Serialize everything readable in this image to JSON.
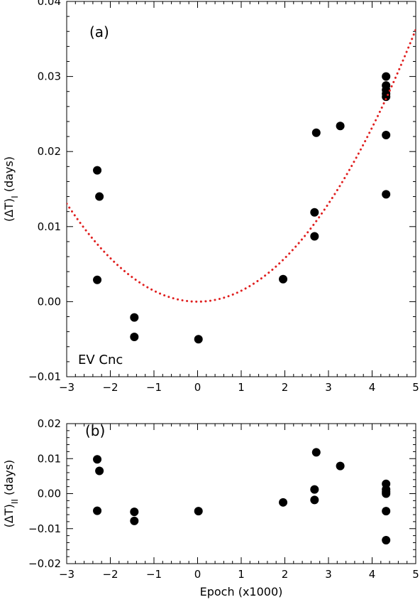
{
  "chart_data": [
    {
      "type": "scatter",
      "panel_label": "(a)",
      "annotation": "EV Cnc",
      "xlabel": "",
      "ylabel": "(ΔT)",
      "ylabel_subscript": "I",
      "ylabel_unit": " (days)",
      "xlim": [
        -3,
        5
      ],
      "ylim": [
        -0.01,
        0.04
      ],
      "xticks": [
        -3,
        -2,
        -1,
        0,
        1,
        2,
        3,
        4,
        5
      ],
      "xtick_labels": [
        "−3",
        "−2",
        "−1",
        "0",
        "1",
        "2",
        "3",
        "4",
        "5"
      ],
      "yticks": [
        -0.01,
        0.0,
        0.01,
        0.02,
        0.03,
        0.04
      ],
      "ytick_labels": [
        "−0.01",
        "0.00",
        "0.01",
        "0.02",
        "0.03",
        "0.04"
      ],
      "grid": false,
      "series": [
        {
          "style": "points",
          "color": "#000000",
          "points": [
            [
              -2.3,
              0.0175
            ],
            [
              -2.25,
              0.014
            ],
            [
              -2.3,
              0.0029
            ],
            [
              -1.45,
              -0.0021
            ],
            [
              -1.45,
              -0.0047
            ],
            [
              0.02,
              -0.005
            ],
            [
              1.96,
              0.003
            ],
            [
              2.68,
              0.0119
            ],
            [
              2.68,
              0.0087
            ],
            [
              2.72,
              0.0225
            ],
            [
              3.27,
              0.0234
            ],
            [
              4.32,
              0.03
            ],
            [
              4.32,
              0.0288
            ],
            [
              4.32,
              0.0282
            ],
            [
              4.32,
              0.0277
            ],
            [
              4.32,
              0.0273
            ],
            [
              4.32,
              0.0222
            ],
            [
              4.32,
              0.0143
            ]
          ]
        },
        {
          "style": "dotted-curve",
          "color": "#e02020",
          "function": "quadratic",
          "coefficients": {
            "a": 0.00145,
            "b": 0.0,
            "c": 0.0
          },
          "x_range": [
            -3,
            5
          ]
        }
      ]
    },
    {
      "type": "scatter",
      "panel_label": "(b)",
      "xlabel": "Epoch (x1000)",
      "ylabel": "(ΔT)",
      "ylabel_subscript": "II",
      "ylabel_unit": " (days)",
      "xlim": [
        -3,
        5
      ],
      "ylim": [
        -0.02,
        0.02
      ],
      "xticks": [
        -3,
        -2,
        -1,
        0,
        1,
        2,
        3,
        4,
        5
      ],
      "xtick_labels": [
        "−3",
        "−2",
        "−1",
        "0",
        "1",
        "2",
        "3",
        "4",
        "5"
      ],
      "yticks": [
        -0.02,
        -0.01,
        0.0,
        0.01,
        0.02
      ],
      "ytick_labels": [
        "−0.02",
        "−0.01",
        "0.00",
        "0.01",
        "0.02"
      ],
      "grid": false,
      "series": [
        {
          "style": "points",
          "color": "#000000",
          "points": [
            [
              -2.3,
              0.0098
            ],
            [
              -2.25,
              0.0065
            ],
            [
              -2.3,
              -0.0049
            ],
            [
              -1.45,
              -0.0052
            ],
            [
              -1.45,
              -0.0078
            ],
            [
              0.02,
              -0.005
            ],
            [
              1.96,
              -0.0025
            ],
            [
              2.68,
              0.0012
            ],
            [
              2.68,
              -0.0018
            ],
            [
              2.72,
              0.0118
            ],
            [
              3.27,
              0.0079
            ],
            [
              4.32,
              0.0028
            ],
            [
              4.32,
              0.0012
            ],
            [
              4.32,
              0.0005
            ],
            [
              4.32,
              0.0
            ],
            [
              4.32,
              -0.005
            ],
            [
              4.32,
              -0.0133
            ]
          ]
        }
      ]
    }
  ]
}
